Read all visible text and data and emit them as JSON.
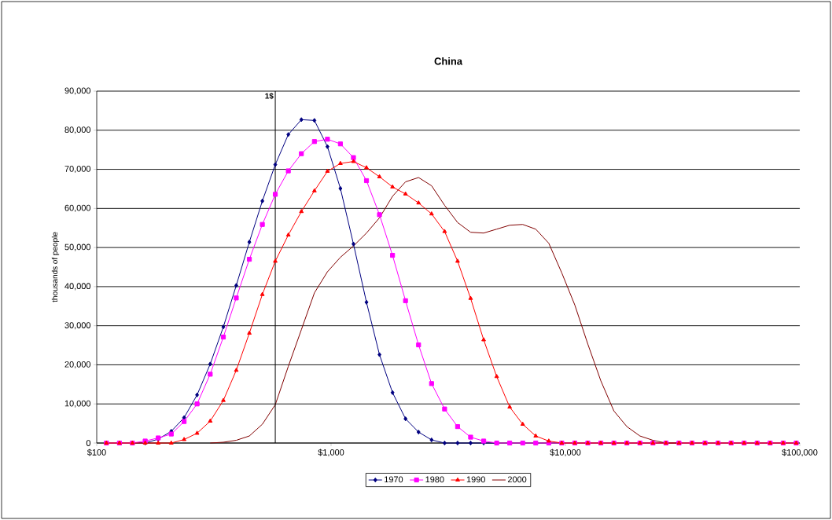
{
  "chart_data": {
    "type": "line",
    "title": "China",
    "ylabel": "thousands of people",
    "log": "x",
    "x": [
      110,
      125,
      142,
      161,
      183,
      208,
      236,
      268,
      305,
      347,
      394,
      448,
      509,
      578,
      657,
      747,
      849,
      965,
      1096,
      1246,
      1416,
      1609,
      1829,
      2078,
      2362,
      2684,
      3051,
      3467,
      3940,
      4478,
      5089,
      5784,
      6573,
      7470,
      8490,
      9649,
      10965,
      12462,
      14163,
      16097,
      18295,
      20793,
      23631,
      26857,
      30524,
      34690,
      39425,
      44806,
      50924,
      57874,
      65773,
      74750,
      84954,
      96549
    ],
    "series": [
      {
        "name": "1970",
        "color": "#000080",
        "marker": "diamond",
        "values": [
          null,
          null,
          0,
          0,
          1000,
          3000,
          6500,
          12300,
          20200,
          29700,
          40300,
          51400,
          61900,
          71200,
          78900,
          82700,
          82500,
          75800,
          65100,
          50900,
          36000,
          22600,
          12900,
          6200,
          2800,
          800,
          0,
          0,
          0,
          0,
          0,
          null,
          null,
          null,
          null,
          null,
          null,
          null,
          null,
          null,
          null,
          null,
          null,
          null,
          null,
          null,
          null,
          null,
          null,
          null,
          null,
          null,
          null,
          null
        ]
      },
      {
        "name": "1980",
        "color": "#ff00ff",
        "marker": "square",
        "values": [
          0,
          0,
          0,
          500,
          1300,
          2300,
          5500,
          10000,
          17600,
          27100,
          37100,
          47000,
          55900,
          63600,
          69600,
          74000,
          77100,
          77700,
          76500,
          73000,
          67100,
          58400,
          48000,
          36400,
          25100,
          15200,
          8700,
          4200,
          1500,
          500,
          0,
          0,
          0,
          0,
          0,
          0,
          0,
          0,
          0,
          0,
          0,
          0,
          0,
          0,
          0,
          0,
          0,
          0,
          0,
          0,
          0,
          0,
          0,
          0
        ]
      },
      {
        "name": "1990",
        "color": "#ff0000",
        "marker": "triangle",
        "values": [
          0,
          0,
          0,
          0,
          0,
          0,
          900,
          2500,
          5600,
          10900,
          18600,
          28100,
          38000,
          46500,
          53200,
          59200,
          64500,
          69500,
          71500,
          72000,
          70400,
          68100,
          65500,
          63700,
          61400,
          58600,
          54100,
          46500,
          37000,
          26400,
          17000,
          9200,
          4800,
          1800,
          500,
          0,
          0,
          0,
          0,
          0,
          0,
          0,
          0,
          0,
          0,
          0,
          0,
          0,
          0,
          0,
          0,
          0,
          0,
          0
        ]
      },
      {
        "name": "2000",
        "color": "#800000",
        "marker": "none",
        "values": [
          null,
          null,
          null,
          null,
          null,
          null,
          null,
          null,
          0,
          200,
          700,
          1800,
          4800,
          9800,
          19600,
          29000,
          38400,
          43800,
          47500,
          50400,
          53700,
          57600,
          63100,
          66800,
          67900,
          65800,
          60800,
          56400,
          53900,
          53700,
          54700,
          55700,
          55900,
          54700,
          51100,
          43500,
          35300,
          25300,
          15900,
          8200,
          4200,
          1800,
          700,
          0,
          0,
          null,
          null,
          null,
          null,
          null,
          null,
          null,
          null,
          null
        ]
      }
    ],
    "xlim": [
      100,
      100000
    ],
    "xticks": [
      {
        "value": 100,
        "label": "$100"
      },
      {
        "value": 1000,
        "label": "$1,000"
      },
      {
        "value": 10000,
        "label": "$10,000"
      },
      {
        "value": 100000,
        "label": "$100,000"
      }
    ],
    "ylim": [
      0,
      90000
    ],
    "yticks": [
      0,
      {
        "value": 10000,
        "label": "10,000"
      },
      {
        "value": 20000,
        "label": "20,000"
      },
      {
        "value": 30000,
        "label": "30,000"
      },
      {
        "value": 40000,
        "label": "40,000"
      },
      {
        "value": 50000,
        "label": "50,000"
      },
      {
        "value": 60000,
        "label": "60,000"
      },
      {
        "value": 70000,
        "label": "70,000"
      },
      {
        "value": 80000,
        "label": "80,000"
      },
      {
        "value": 90000,
        "label": "90,000"
      }
    ],
    "grid": "y",
    "legend": "bottom",
    "line_style": "solid",
    "ref_lines": [
      {
        "axis": "x",
        "value": 578,
        "color": "#000000"
      }
    ],
    "annotations": [
      {
        "text": "1$",
        "x": 578,
        "y": 90000
      }
    ]
  }
}
